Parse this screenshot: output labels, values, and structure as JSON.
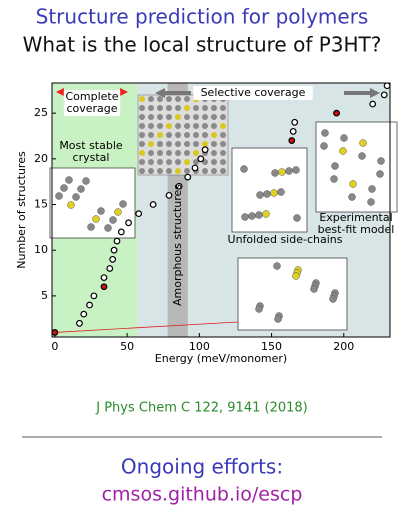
{
  "header": {
    "title": "Structure prediction for polymers",
    "subtitle": "What is the local structure of P3HT?"
  },
  "chart_data": {
    "type": "scatter",
    "xlabel": "Energy (meV/monomer)",
    "ylabel": "Number of structures",
    "x": [
      0,
      17,
      20,
      24,
      27,
      34,
      34,
      38,
      40,
      41,
      43,
      46,
      51,
      58,
      68,
      79,
      86,
      92,
      97,
      101,
      104,
      164,
      165,
      166,
      195,
      220,
      228,
      230
    ],
    "values": [
      1,
      2,
      3,
      4,
      5,
      6,
      7,
      8,
      9,
      10,
      11,
      12,
      13,
      14,
      15,
      16,
      17,
      18,
      19,
      20,
      21,
      22,
      23,
      24,
      25,
      26,
      27,
      28
    ],
    "marker_colors": [
      "#cc1111",
      "#ffffff",
      "#ffffff",
      "#ffffff",
      "#ffffff",
      "#cc1111",
      "#ffffff",
      "#ffffff",
      "#ffffff",
      "#ffffff",
      "#ffffff",
      "#ffffff",
      "#ffffff",
      "#ffffff",
      "#ffffff",
      "#ffffff",
      "#ffffff",
      "#ffffff",
      "#ffffff",
      "#ffffff",
      "#ffffff",
      "#cc1111",
      "#ffffff",
      "#ffffff",
      "#cc1111",
      "#ffffff",
      "#ffffff",
      "#ffffff"
    ],
    "xlim": [
      -2,
      232
    ],
    "ylim": [
      0.5,
      28.3
    ],
    "xticks": [
      0,
      50,
      100,
      150,
      200
    ],
    "yticks": [
      5,
      10,
      15,
      20,
      25
    ],
    "shaded_regions": [
      {
        "from": -2,
        "to": 57,
        "color": "#c9f2c4"
      },
      {
        "from": 57,
        "to": 232,
        "color": "#d8e5e7"
      },
      {
        "from": 78,
        "to": 92,
        "color": "#b7b7b7"
      }
    ],
    "annotations": [
      {
        "lines": [
          "Complete",
          "coverage"
        ]
      },
      {
        "lines": [
          "Selective coverage"
        ]
      },
      {
        "lines": [
          "Most stable",
          "crystal"
        ]
      },
      {
        "lines": [
          "Amorphous structures"
        ]
      },
      {
        "lines": [
          "Unfolded side-chains"
        ]
      },
      {
        "lines": [
          "Experimental",
          "best-fit model"
        ]
      }
    ]
  },
  "citation": "J Phys Chem C 122, 9141 (2018)",
  "footer": {
    "line1": "Ongoing efforts:",
    "line2": "cmsos.github.io/escp"
  }
}
